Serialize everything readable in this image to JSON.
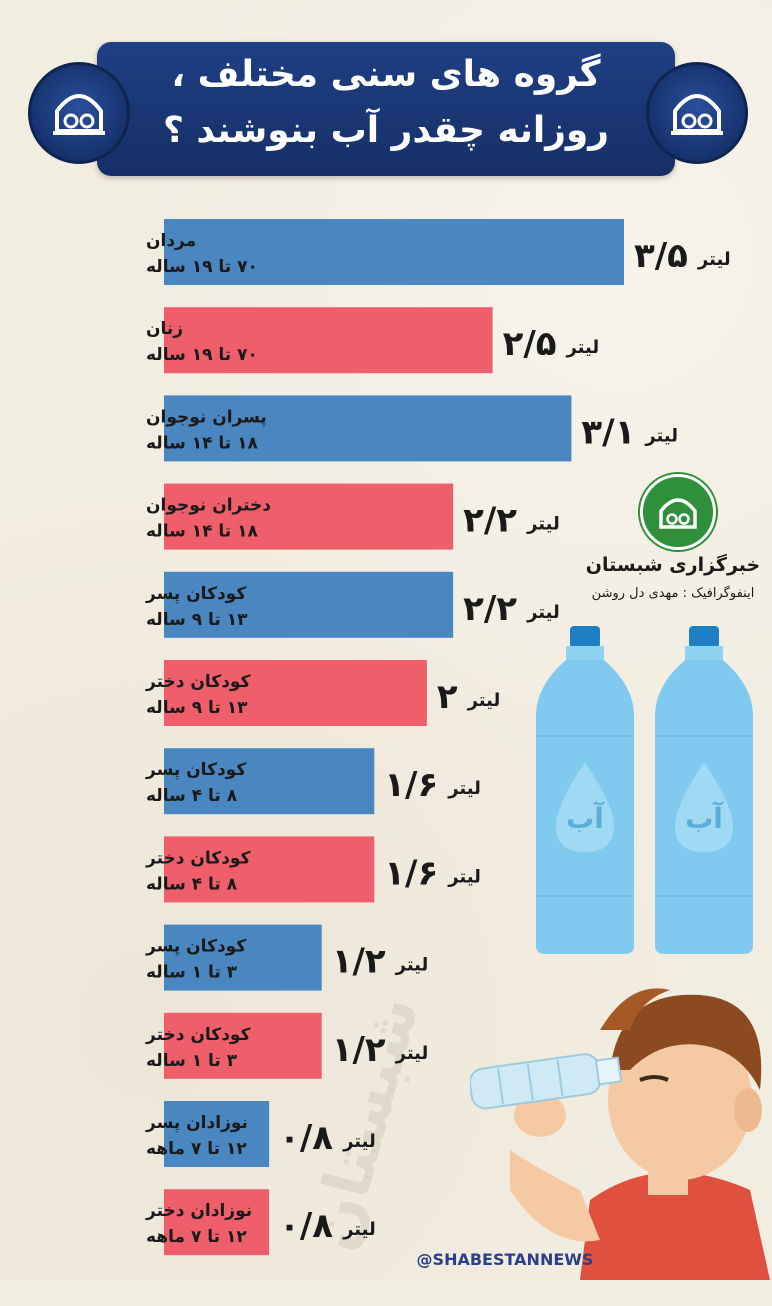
{
  "header": {
    "title_line1": "گروه های سنی مختلف ،",
    "title_line2": "روزانه چقدر آب بنوشند ؟"
  },
  "colors": {
    "male": "#4a86c0",
    "female": "#ef5f6b",
    "header_bg": "#1d3b7c",
    "logo_green": "#2f8f3a",
    "bottle": "#7fcaee"
  },
  "brand": {
    "name": "خبرگزاری شبستان",
    "credit": "اینفوگرافیک : مهدی دل روشن",
    "handle": "@SHABESTANNEWS",
    "bottle_label": "آب"
  },
  "icons": {
    "emblem": "mosque-emblem-icon",
    "logo": "shabestan-logo-icon",
    "bottle": "water-bottle-icon",
    "figure": "boy-drinking-icon"
  },
  "chart_data": {
    "type": "bar",
    "orientation": "horizontal",
    "unit": "لیتر",
    "xlim": [
      0,
      3.5
    ],
    "grid": false,
    "categories": [
      {
        "group": "مردان",
        "age": "۷۰ تا ۱۹ ساله",
        "value": 3.5,
        "value_label": "۳/۵",
        "sex": "male"
      },
      {
        "group": "زنان",
        "age": "۷۰ تا ۱۹ ساله",
        "value": 2.5,
        "value_label": "۲/۵",
        "sex": "female"
      },
      {
        "group": "پسران نوجوان",
        "age": "۱۸ تا ۱۴ ساله",
        "value": 3.1,
        "value_label": "۳/۱",
        "sex": "male"
      },
      {
        "group": "دختران نوجوان",
        "age": "۱۸ تا ۱۴ ساله",
        "value": 2.2,
        "value_label": "۲/۲",
        "sex": "female"
      },
      {
        "group": "کودکان پسر",
        "age": "۱۳ تا ۹ ساله",
        "value": 2.2,
        "value_label": "۲/۲",
        "sex": "male"
      },
      {
        "group": "کودکان دختر",
        "age": "۱۳ تا ۹ ساله",
        "value": 2.0,
        "value_label": "۲",
        "sex": "female"
      },
      {
        "group": "کودکان پسر",
        "age": "۸ تا ۴ ساله",
        "value": 1.6,
        "value_label": "۱/۶",
        "sex": "male"
      },
      {
        "group": "کودکان دختر",
        "age": "۸ تا ۴ ساله",
        "value": 1.6,
        "value_label": "۱/۶",
        "sex": "female"
      },
      {
        "group": "کودکان پسر",
        "age": "۳ تا ۱ ساله",
        "value": 1.2,
        "value_label": "۱/۲",
        "sex": "male"
      },
      {
        "group": "کودکان دختر",
        "age": "۳ تا ۱ ساله",
        "value": 1.2,
        "value_label": "۱/۲",
        "sex": "female"
      },
      {
        "group": "نوزادان پسر",
        "age": "۱۲ تا ۷ ماهه",
        "value": 0.8,
        "value_label": "۰/۸",
        "sex": "male"
      },
      {
        "group": "نوزادان دختر",
        "age": "۱۲ تا ۷ ماهه",
        "value": 0.8,
        "value_label": "۰/۸",
        "sex": "female"
      }
    ]
  }
}
